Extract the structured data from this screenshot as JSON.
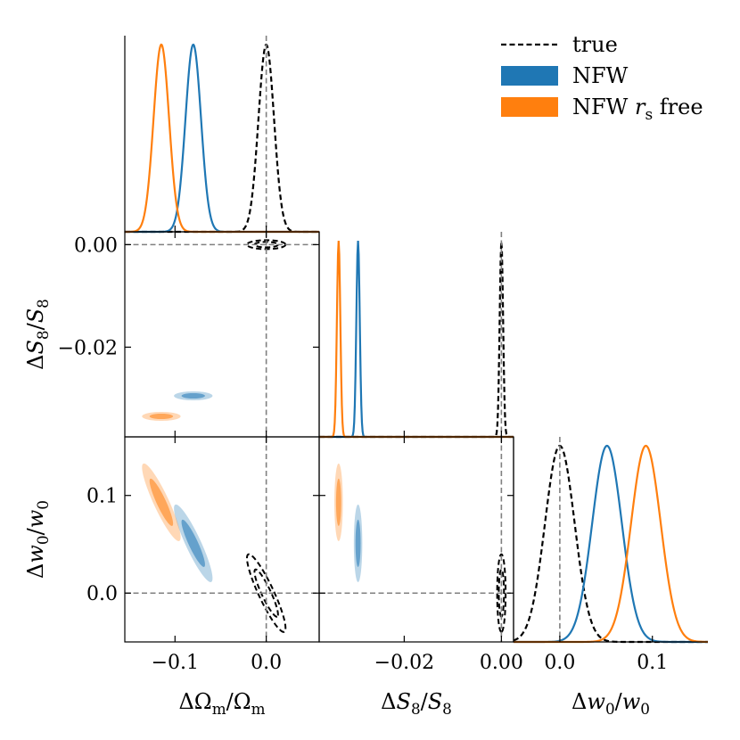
{
  "chart_data": {
    "type": "corner",
    "parameters": [
      {
        "key": "dOm",
        "label_text": "ΔΩm/Ωm",
        "range": [
          -0.155,
          0.058
        ],
        "ticks": [
          -0.1,
          0.0
        ],
        "tick_labels": [
          "−0.1",
          "0.0"
        ]
      },
      {
        "key": "dS8",
        "label_text": "ΔS8/S8",
        "range": [
          -0.0375,
          0.0025
        ],
        "ticks": [
          -0.02,
          0.0
        ],
        "tick_labels": [
          "−0.02",
          "0.00"
        ]
      },
      {
        "key": "dw0",
        "label_text": "Δw0/w0",
        "range": [
          -0.05,
          0.16
        ],
        "ticks": [
          0.0,
          0.1
        ],
        "tick_labels": [
          "0.0",
          "0.1"
        ]
      }
    ],
    "y_ticks": {
      "dS8": {
        "ticks": [
          0.0,
          -0.02
        ],
        "tick_labels": [
          "0.00",
          "−0.02"
        ]
      },
      "dw0": {
        "ticks": [
          0.1,
          0.0
        ],
        "tick_labels": [
          "0.1",
          "0.0"
        ]
      }
    },
    "axis_labels": {
      "x": [
        "ΔΩm/Ωm",
        "ΔS8/S8",
        "Δw0/w0"
      ],
      "y": [
        "ΔS8/S8",
        "Δw0/w0"
      ]
    },
    "truth": {
      "dOm": 0.0,
      "dS8": 0.0,
      "dw0": 0.0
    },
    "legend": {
      "placement": "top-right",
      "entries": [
        {
          "label": "true",
          "style": "dashed",
          "color": "#000000"
        },
        {
          "label": "NFW",
          "style": "filled",
          "color": "#1f77b4"
        },
        {
          "label": "NFW rs free",
          "style": "filled",
          "color": "#ff7f0e"
        }
      ]
    },
    "series": [
      {
        "name": "true",
        "color": "#000000",
        "style": "dashed-contour",
        "mean": {
          "dOm": 0.0,
          "dS8": 0.0,
          "dw0": 0.0
        },
        "sigma": {
          "dOm": 0.0085,
          "dS8": 0.00035,
          "dw0": 0.016
        },
        "corr": {
          "dOm_dS8": 0.0,
          "dOm_dw0": -0.9,
          "dS8_dw0": 0.0
        }
      },
      {
        "name": "NFW",
        "color": "#1f77b4",
        "style": "filled",
        "mean": {
          "dOm": -0.08,
          "dS8": -0.0295,
          "dw0": 0.051
        },
        "sigma": {
          "dOm": 0.0085,
          "dS8": 0.00035,
          "dw0": 0.016
        },
        "corr": {
          "dOm_dS8": 0.0,
          "dOm_dw0": -0.9,
          "dS8_dw0": 0.0
        }
      },
      {
        "name": "NFW rs free",
        "color": "#ff7f0e",
        "style": "filled",
        "mean": {
          "dOm": -0.115,
          "dS8": -0.0335,
          "dw0": 0.093
        },
        "sigma": {
          "dOm": 0.0085,
          "dS8": 0.00035,
          "dw0": 0.016
        },
        "corr": {
          "dOm_dS8": 0.0,
          "dOm_dw0": -0.9,
          "dS8_dw0": 0.0
        }
      }
    ]
  }
}
